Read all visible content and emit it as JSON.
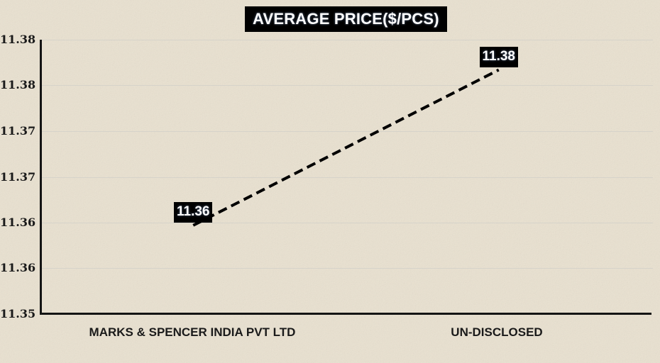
{
  "chart_data": {
    "type": "line",
    "title": "AVERAGE PRICE($/PCS)",
    "categories": [
      "MARKS & SPENCER INDIA PVT LTD",
      "UN-DISCLOSED"
    ],
    "series": [
      {
        "name": "AVERAGE PRICE($/PCS)",
        "values": [
          11.3597,
          11.3767
        ],
        "data_labels": [
          "11.36",
          "11.38"
        ]
      }
    ],
    "xlabel": "",
    "ylabel": "",
    "ylim": [
      11.35,
      11.38
    ],
    "ytick_step": 0.005,
    "ytick_labels": [
      "11.38",
      "11.38",
      "11.37",
      "11.37",
      "11.36",
      "11.36",
      "11.35"
    ],
    "grid": "horizontal",
    "legend": "none",
    "line_style": "dashed",
    "colors": {
      "background": "#e9e1d0",
      "line": "#000000",
      "axis": "#141414",
      "gridline": "#d6d3ca",
      "label_box_bg": "#000000",
      "label_box_text": "#ffffff",
      "tick_text": "#1a1a1a"
    }
  }
}
